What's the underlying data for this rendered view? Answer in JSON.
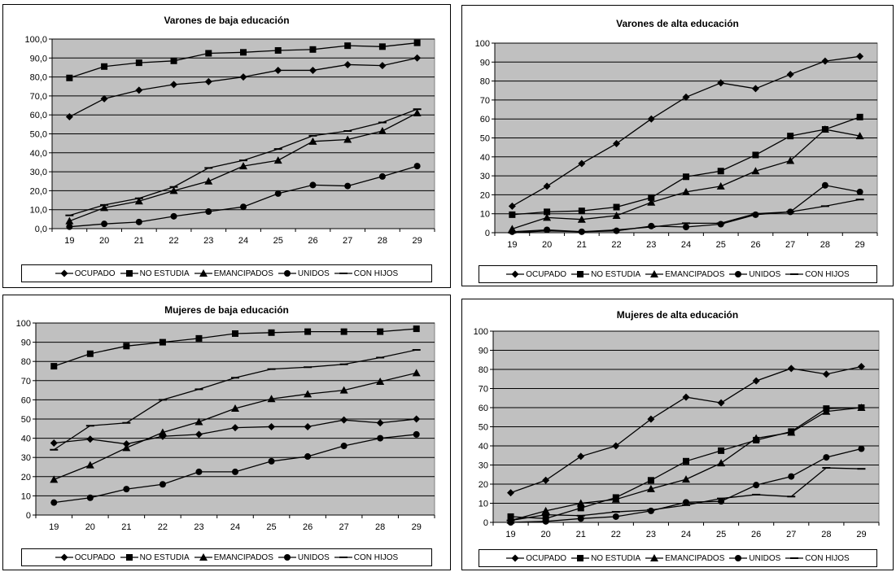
{
  "chart_data": [
    {
      "type": "line",
      "title": "Varones de baja educación",
      "categories": [
        "19",
        "20",
        "21",
        "22",
        "23",
        "24",
        "25",
        "26",
        "27",
        "28",
        "29"
      ],
      "ylim": [
        0,
        100
      ],
      "yticks": [
        "0,0",
        "10,0",
        "20,0",
        "30,0",
        "40,0",
        "50,0",
        "60,0",
        "70,0",
        "80,0",
        "90,0",
        "100,0"
      ],
      "grid": true,
      "legend_position": "bottom",
      "series": [
        {
          "name": "OCUPADO",
          "marker": "diamond",
          "values": [
            59,
            68.5,
            73,
            76,
            77.5,
            80,
            83.5,
            83.5,
            86.5,
            86,
            90
          ]
        },
        {
          "name": "NO ESTUDIA",
          "marker": "square",
          "values": [
            79.5,
            85.5,
            87.5,
            88.5,
            92.5,
            93,
            94,
            94.5,
            96.5,
            96,
            98
          ]
        },
        {
          "name": "EMANCIPADOS",
          "marker": "triangle",
          "values": [
            4,
            11,
            14.5,
            20,
            25,
            33,
            36,
            46,
            47,
            51.5,
            61
          ]
        },
        {
          "name": "UNIDOS",
          "marker": "circle",
          "values": [
            1,
            2.5,
            3.5,
            6.5,
            9,
            11.5,
            18.5,
            23,
            22.5,
            27.5,
            33
          ]
        },
        {
          "name": "CON HIJOS",
          "marker": "dash",
          "values": [
            7,
            12.5,
            16,
            22,
            32,
            36,
            42,
            49,
            51.5,
            56,
            63
          ]
        }
      ]
    },
    {
      "type": "line",
      "title": "Varones de alta educación",
      "categories": [
        "19",
        "20",
        "21",
        "22",
        "23",
        "24",
        "25",
        "26",
        "27",
        "28",
        "29"
      ],
      "ylim": [
        0,
        100
      ],
      "yticks": [
        "0",
        "10",
        "20",
        "30",
        "40",
        "50",
        "60",
        "70",
        "80",
        "90",
        "100"
      ],
      "grid": true,
      "legend_position": "bottom",
      "series": [
        {
          "name": "OCUPADO",
          "marker": "diamond",
          "values": [
            14,
            24.5,
            36.5,
            47,
            60,
            71.5,
            79,
            76,
            83.5,
            90.5,
            93
          ]
        },
        {
          "name": "NO ESTUDIA",
          "marker": "square",
          "values": [
            9.5,
            11,
            11.5,
            13.5,
            18.5,
            29.5,
            32.5,
            41,
            51,
            54.5,
            61
          ]
        },
        {
          "name": "EMANCIPADOS",
          "marker": "triangle",
          "values": [
            2,
            8,
            7,
            9,
            16,
            21.5,
            24.5,
            32.5,
            38,
            54.5,
            51
          ]
        },
        {
          "name": "UNIDOS",
          "marker": "circle",
          "values": [
            0.5,
            1.5,
            0.5,
            1,
            3.5,
            3,
            4.5,
            9.5,
            11,
            25,
            21.5
          ]
        },
        {
          "name": "CON HIJOS",
          "marker": "dash",
          "values": [
            0,
            1,
            0.5,
            1.5,
            3,
            5,
            5,
            10,
            11,
            14,
            17.5
          ]
        }
      ]
    },
    {
      "type": "line",
      "title": "Mujeres de baja educación",
      "categories": [
        "19",
        "20",
        "21",
        "22",
        "23",
        "24",
        "25",
        "26",
        "27",
        "28",
        "29"
      ],
      "ylim": [
        0,
        100
      ],
      "yticks": [
        "0",
        "10",
        "20",
        "30",
        "40",
        "50",
        "60",
        "70",
        "80",
        "90",
        "100"
      ],
      "grid": true,
      "legend_position": "bottom",
      "series": [
        {
          "name": "OCUPADO",
          "marker": "diamond",
          "values": [
            37.5,
            39.5,
            37,
            41,
            42,
            45.5,
            46,
            46,
            49.5,
            48,
            50
          ]
        },
        {
          "name": "NO ESTUDIA",
          "marker": "square",
          "values": [
            77.5,
            84,
            88,
            90,
            92,
            94.5,
            95,
            95.5,
            95.5,
            95.5,
            97
          ]
        },
        {
          "name": "EMANCIPADOS",
          "marker": "triangle",
          "values": [
            18.5,
            26,
            35,
            43,
            48.5,
            55.5,
            60.5,
            63,
            65,
            69.5,
            74
          ]
        },
        {
          "name": "UNIDOS",
          "marker": "circle",
          "values": [
            6.5,
            9,
            13.5,
            16,
            22.5,
            22.5,
            28,
            30.5,
            36,
            40,
            42
          ]
        },
        {
          "name": "CON HIJOS",
          "marker": "dash",
          "values": [
            34,
            46.5,
            48,
            60,
            65.5,
            71.5,
            76,
            77,
            78.5,
            82,
            86
          ]
        }
      ]
    },
    {
      "type": "line",
      "title": "Mujeres de alta educación",
      "categories": [
        "19",
        "20",
        "21",
        "22",
        "23",
        "24",
        "25",
        "26",
        "27",
        "28",
        "29"
      ],
      "ylim": [
        0,
        100
      ],
      "yticks": [
        "0",
        "10",
        "20",
        "30",
        "40",
        "50",
        "60",
        "70",
        "80",
        "90",
        "100"
      ],
      "grid": true,
      "legend_position": "bottom",
      "series": [
        {
          "name": "OCUPADO",
          "marker": "diamond",
          "values": [
            15.5,
            22,
            34.5,
            40,
            54,
            65.5,
            62.5,
            74,
            80.5,
            77.5,
            81.5
          ]
        },
        {
          "name": "NO ESTUDIA",
          "marker": "square",
          "values": [
            3,
            2,
            7.5,
            13,
            22,
            32,
            37.5,
            43,
            47.5,
            59.5,
            60
          ]
        },
        {
          "name": "EMANCIPADOS",
          "marker": "triangle",
          "values": [
            1,
            6,
            10,
            12,
            17.5,
            22.5,
            31,
            44,
            47,
            58,
            60
          ]
        },
        {
          "name": "UNIDOS",
          "marker": "circle",
          "values": [
            0,
            0.5,
            2,
            3,
            6,
            10.5,
            11,
            19.5,
            24,
            34,
            38.5
          ]
        },
        {
          "name": "CON HIJOS",
          "marker": "dash",
          "values": [
            1,
            4,
            3.5,
            5.5,
            6.5,
            9,
            12.5,
            14.5,
            13.5,
            28.5,
            28
          ]
        }
      ]
    }
  ]
}
